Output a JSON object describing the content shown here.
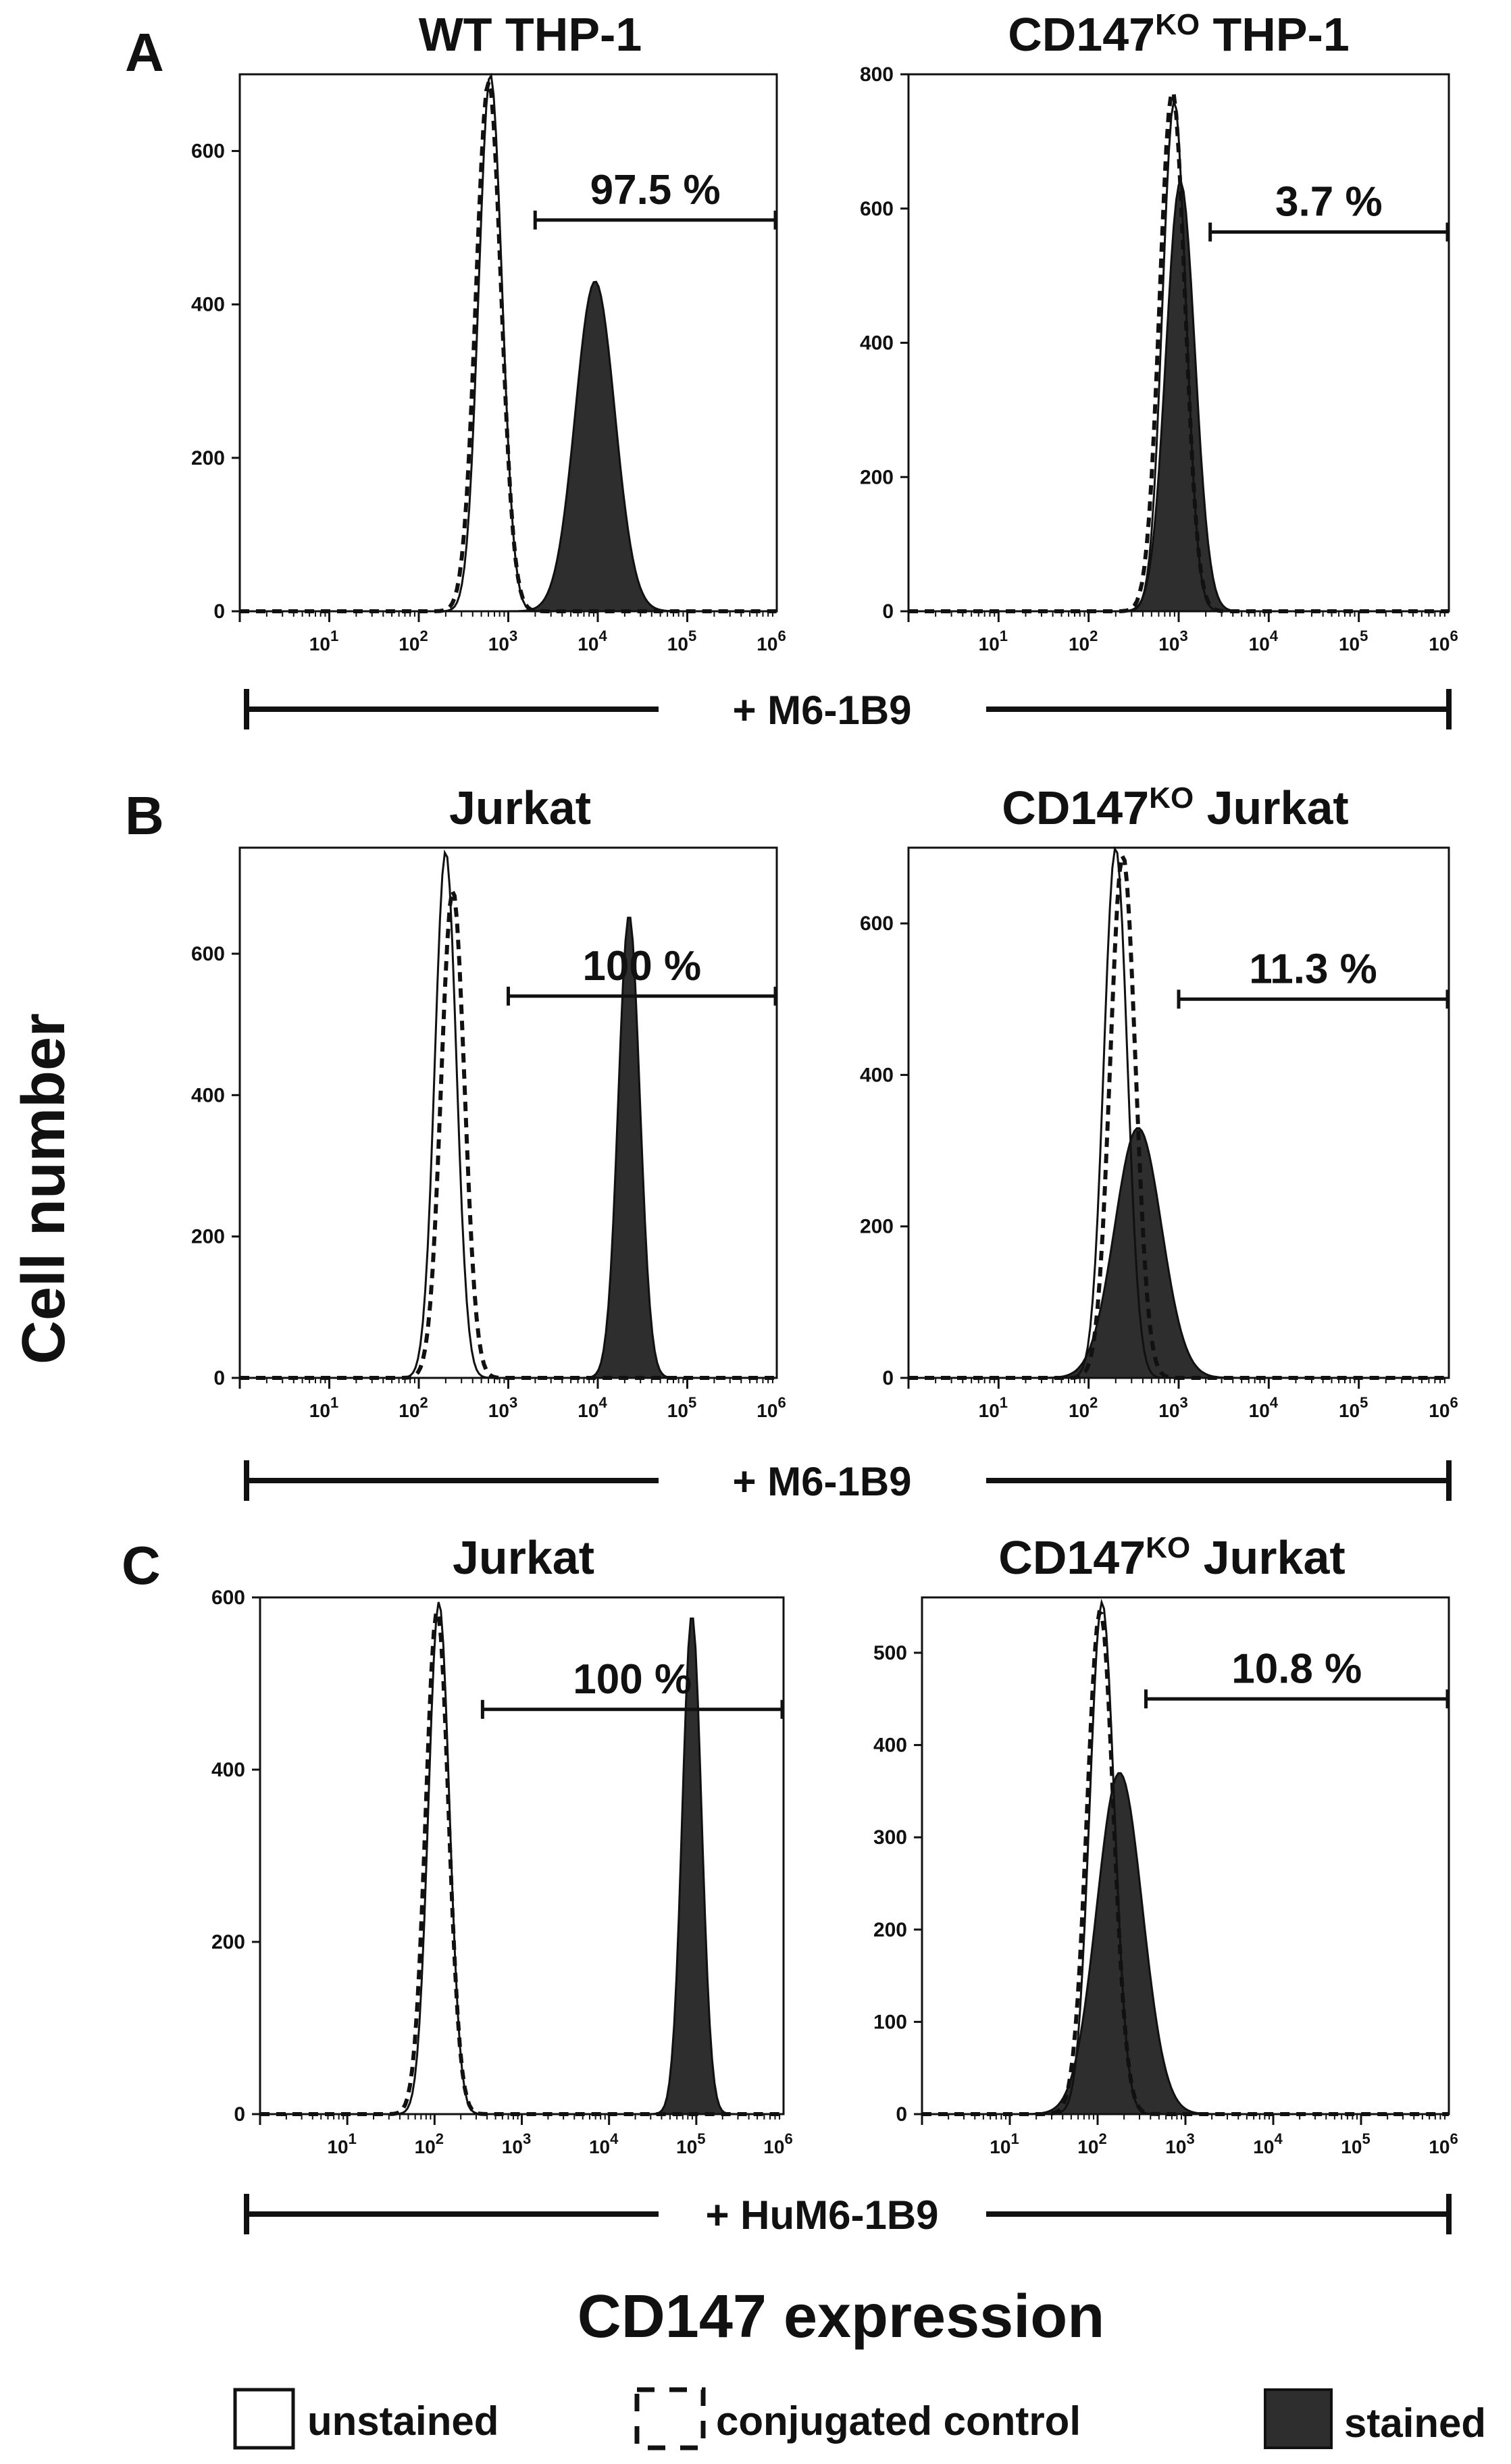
{
  "panel_letters": [
    "A",
    "B",
    "C"
  ],
  "y_axis_title": "Cell number",
  "x_axis_title": "CD147 expression",
  "brackets": [
    "+ M6-1B9",
    "+ M6-1B9",
    "+ HuM6-1B9"
  ],
  "legend": {
    "unstained": "unstained",
    "conjugated": "conjugated control",
    "stained": "stained"
  },
  "colors": {
    "stained_fill": "#2e2e2e",
    "line": "#111111",
    "background": "#ffffff"
  },
  "chart_data": [
    {
      "type": "area",
      "panel": "A",
      "title": "WT THP-1",
      "title_sup": "",
      "title_suffix": "",
      "xlabel": "CD147 expression",
      "ylabel": "Cell number",
      "xscale": "log",
      "xlim": [
        1,
        1000000
      ],
      "ylim": [
        0,
        700
      ],
      "yticks": [
        0,
        200,
        400,
        600
      ],
      "xticks": [
        "10",
        "10",
        "10",
        "10",
        "10",
        "10"
      ],
      "xtick_exp": [
        "1",
        "2",
        "3",
        "4",
        "5",
        "6"
      ],
      "xtick_pos": [
        1,
        2,
        3,
        4,
        5,
        6
      ],
      "gate": {
        "label": "97.5 %",
        "start_log": 3.3,
        "end_log": 6.0,
        "y": 510
      },
      "series": [
        {
          "name": "unstained",
          "peak_log": 2.8,
          "peak_count": 700,
          "width_log": 0.13
        },
        {
          "name": "conjugated control",
          "peak_log": 2.78,
          "peak_count": 690,
          "width_log": 0.14
        },
        {
          "name": "stained",
          "peak_log": 3.97,
          "peak_count": 430,
          "width_log": 0.22
        }
      ]
    },
    {
      "type": "area",
      "panel": "A",
      "title": "CD147",
      "title_sup": "KO",
      "title_suffix": " THP-1",
      "xlabel": "CD147 expression",
      "ylabel": "Cell number",
      "xscale": "log",
      "xlim": [
        1,
        1000000
      ],
      "ylim": [
        0,
        800
      ],
      "yticks": [
        0,
        200,
        400,
        600,
        800
      ],
      "xticks": [
        "10",
        "10",
        "10",
        "10",
        "10",
        "10"
      ],
      "xtick_exp": [
        "1",
        "2",
        "3",
        "4",
        "5",
        "6"
      ],
      "xtick_pos": [
        1,
        2,
        3,
        4,
        5,
        6
      ],
      "gate": {
        "label": "3.7 %",
        "start_log": 3.35,
        "end_log": 6.0,
        "y": 565
      },
      "series": [
        {
          "name": "unstained",
          "peak_log": 2.95,
          "peak_count": 760,
          "width_log": 0.13
        },
        {
          "name": "conjugated control",
          "peak_log": 2.93,
          "peak_count": 775,
          "width_log": 0.14
        },
        {
          "name": "stained",
          "peak_log": 3.02,
          "peak_count": 640,
          "width_log": 0.16
        }
      ]
    },
    {
      "type": "area",
      "panel": "B",
      "title": "Jurkat",
      "title_sup": "",
      "title_suffix": "",
      "xlabel": "CD147 expression",
      "ylabel": "Cell number",
      "xscale": "log",
      "xlim": [
        1,
        1000000
      ],
      "ylim": [
        0,
        750
      ],
      "yticks": [
        0,
        200,
        400,
        600
      ],
      "xticks": [
        "10",
        "10",
        "10",
        "10",
        "10",
        "10"
      ],
      "xtick_exp": [
        "1",
        "2",
        "3",
        "4",
        "5",
        "6"
      ],
      "xtick_pos": [
        1,
        2,
        3,
        4,
        5,
        6
      ],
      "gate": {
        "label": "100 %",
        "start_log": 3.0,
        "end_log": 6.0,
        "y": 540
      },
      "series": [
        {
          "name": "unstained",
          "peak_log": 2.3,
          "peak_count": 745,
          "width_log": 0.12
        },
        {
          "name": "conjugated control",
          "peak_log": 2.38,
          "peak_count": 690,
          "width_log": 0.13
        },
        {
          "name": "stained",
          "peak_log": 4.35,
          "peak_count": 655,
          "width_log": 0.12
        }
      ]
    },
    {
      "type": "area",
      "panel": "B",
      "title": "CD147",
      "title_sup": "KO",
      "title_suffix": " Jurkat",
      "xlabel": "CD147 expression",
      "ylabel": "Cell number",
      "xscale": "log",
      "xlim": [
        1,
        1000000
      ],
      "ylim": [
        0,
        700
      ],
      "yticks": [
        0,
        200,
        400,
        600
      ],
      "xticks": [
        "10",
        "10",
        "10",
        "10",
        "10",
        "10"
      ],
      "xtick_exp": [
        "1",
        "2",
        "3",
        "4",
        "5",
        "6"
      ],
      "xtick_pos": [
        1,
        2,
        3,
        4,
        5,
        6
      ],
      "gate": {
        "label": "11.3 %",
        "start_log": 3.0,
        "end_log": 6.0,
        "y": 500
      },
      "series": [
        {
          "name": "unstained",
          "peak_log": 2.3,
          "peak_count": 700,
          "width_log": 0.13
        },
        {
          "name": "conjugated control",
          "peak_log": 2.38,
          "peak_count": 690,
          "width_log": 0.14
        },
        {
          "name": "stained",
          "peak_log": 2.55,
          "peak_count": 330,
          "width_log": 0.26
        }
      ]
    },
    {
      "type": "area",
      "panel": "C",
      "title": "Jurkat",
      "title_sup": "",
      "title_suffix": "",
      "xlabel": "CD147 expression",
      "ylabel": "Cell number",
      "xscale": "log",
      "xlim": [
        1,
        1000000
      ],
      "ylim": [
        0,
        600
      ],
      "yticks": [
        0,
        200,
        400,
        600
      ],
      "xticks": [
        "10",
        "10",
        "10",
        "10",
        "10",
        "10"
      ],
      "xtick_exp": [
        "1",
        "2",
        "3",
        "4",
        "5",
        "6"
      ],
      "xtick_pos": [
        1,
        2,
        3,
        4,
        5,
        6
      ],
      "gate": {
        "label": "100 %",
        "start_log": 2.55,
        "end_log": 6.0,
        "y": 470
      },
      "series": [
        {
          "name": "unstained",
          "peak_log": 2.05,
          "peak_count": 595,
          "width_log": 0.12
        },
        {
          "name": "conjugated control",
          "peak_log": 2.03,
          "peak_count": 585,
          "width_log": 0.13
        },
        {
          "name": "stained",
          "peak_log": 4.95,
          "peak_count": 580,
          "width_log": 0.11
        }
      ]
    },
    {
      "type": "area",
      "panel": "C",
      "title": "CD147",
      "title_sup": "KO",
      "title_suffix": " Jurkat",
      "xlabel": "CD147 expression",
      "ylabel": "Cell number",
      "xscale": "log",
      "xlim": [
        1,
        1000000
      ],
      "ylim": [
        0,
        560
      ],
      "yticks": [
        0,
        100,
        200,
        300,
        400,
        500
      ],
      "xticks": [
        "10",
        "10",
        "10",
        "10",
        "10",
        "10"
      ],
      "xtick_exp": [
        "1",
        "2",
        "3",
        "4",
        "5",
        "6"
      ],
      "xtick_pos": [
        1,
        2,
        3,
        4,
        5,
        6
      ],
      "gate": {
        "label": "10.8 %",
        "start_log": 2.55,
        "end_log": 6.0,
        "y": 450
      },
      "series": [
        {
          "name": "unstained",
          "peak_log": 2.05,
          "peak_count": 555,
          "width_log": 0.14
        },
        {
          "name": "conjugated control",
          "peak_log": 2.03,
          "peak_count": 545,
          "width_log": 0.15
        },
        {
          "name": "stained",
          "peak_log": 2.25,
          "peak_count": 370,
          "width_log": 0.26
        }
      ]
    }
  ]
}
